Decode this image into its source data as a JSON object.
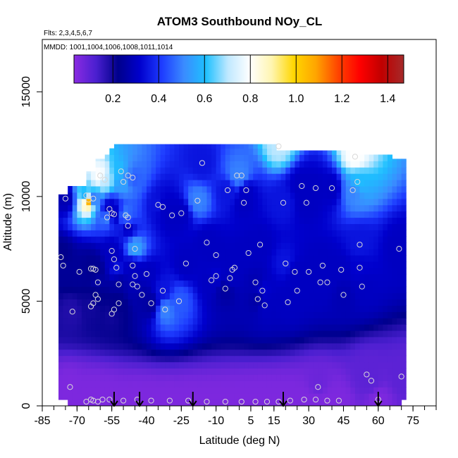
{
  "chart_data": {
    "type": "heatmap",
    "title": "ATOM3 Southbound NOy_CL",
    "flights_note": "Flts: 2,3,4,5,6,7",
    "dates_note": "MMDD: 1001,1004,1006,1008,1011,1014",
    "xlabel": "Latitude (deg N)",
    "ylabel": "Altitude (m)",
    "xlim": [
      -85,
      85
    ],
    "ylim": [
      0,
      17500
    ],
    "x_ticks": [
      -85,
      -70,
      -55,
      -40,
      -25,
      -10,
      5,
      15,
      30,
      45,
      60,
      75
    ],
    "x_tick_labels": [
      "-85",
      "-70",
      "-55",
      "-40",
      "-25",
      "-10",
      "5",
      "15",
      "30",
      "45",
      "60",
      "75"
    ],
    "y_ticks": [
      0,
      5000,
      10000,
      15000
    ],
    "y_tick_labels": [
      "0",
      "5000",
      "10000",
      "15000"
    ],
    "colorbar": {
      "range": [
        0.03,
        1.47
      ],
      "ticks": [
        0.2,
        0.4,
        0.6,
        0.8,
        1.0,
        1.2,
        1.4
      ],
      "tick_labels": [
        "0.2",
        "0.4",
        "0.6",
        "0.8",
        "1.0",
        "1.2",
        "1.4"
      ],
      "colors": [
        "#8a2be2",
        "#4b1fd0",
        "#00008b",
        "#0000cd",
        "#1e3cff",
        "#3a8bff",
        "#1ec0ff",
        "#bfe8ff",
        "#ffffff",
        "#fff5b0",
        "#ffd700",
        "#ffa500",
        "#ff4500",
        "#ff0000",
        "#c00000",
        "#a52a2a"
      ]
    },
    "profile_arrows_lat": [
      -54,
      -43,
      -20,
      19,
      60
    ],
    "samples": [
      [
        -77,
        7100,
        0.22
      ],
      [
        -76,
        6700,
        0.24
      ],
      [
        -75,
        9900,
        0.28
      ],
      [
        -72,
        4500,
        0.18
      ],
      [
        -73,
        900,
        0.05
      ],
      [
        -69,
        6400,
        0.24
      ],
      [
        -66,
        10050,
        0.55
      ],
      [
        -65,
        9850,
        1.1
      ],
      [
        -63,
        9900,
        0.45
      ],
      [
        -64,
        6550,
        0.23
      ],
      [
        -63,
        6550,
        0.23
      ],
      [
        -62,
        6500,
        0.23
      ],
      [
        -61,
        5900,
        0.26
      ],
      [
        -62,
        5300,
        0.22
      ],
      [
        -61,
        5100,
        0.22
      ],
      [
        -63,
        4900,
        0.2
      ],
      [
        -64,
        4750,
        0.2
      ],
      [
        -66,
        200,
        0.05
      ],
      [
        -64,
        300,
        0.05
      ],
      [
        -63,
        250,
        0.05
      ],
      [
        -61,
        200,
        0.05
      ],
      [
        -60,
        11000,
        0.8
      ],
      [
        -58,
        10800,
        0.7
      ],
      [
        -57,
        9000,
        0.5
      ],
      [
        -56,
        9400,
        0.3
      ],
      [
        -55,
        9200,
        0.3
      ],
      [
        -54,
        9150,
        0.3
      ],
      [
        -55,
        7400,
        0.3
      ],
      [
        -54,
        7000,
        0.3
      ],
      [
        -53,
        6600,
        0.35
      ],
      [
        -52,
        5800,
        0.25
      ],
      [
        -54,
        4600,
        0.22
      ],
      [
        -55,
        4400,
        0.2
      ],
      [
        -52,
        4900,
        0.22
      ],
      [
        -51,
        11200,
        0.6
      ],
      [
        -50,
        10700,
        0.55
      ],
      [
        -49,
        9100,
        0.5
      ],
      [
        -48,
        9000,
        0.45
      ],
      [
        -48,
        8600,
        0.3
      ],
      [
        -45,
        7500,
        0.55
      ],
      [
        -46,
        6700,
        0.3
      ],
      [
        -45,
        6200,
        0.3
      ],
      [
        -46,
        5800,
        0.28
      ],
      [
        -44,
        5700,
        0.28
      ],
      [
        -42,
        5300,
        0.26
      ],
      [
        -48,
        11000,
        0.5
      ],
      [
        -46,
        10900,
        0.45
      ],
      [
        -40,
        6300,
        0.3
      ],
      [
        -38,
        4900,
        0.25
      ],
      [
        -35,
        9600,
        0.35
      ],
      [
        -33,
        9500,
        0.3
      ],
      [
        -33,
        5500,
        0.35
      ],
      [
        -32,
        4600,
        0.5
      ],
      [
        -29,
        9100,
        0.3
      ],
      [
        -26,
        5000,
        0.45
      ],
      [
        -25,
        9200,
        0.3
      ],
      [
        -23,
        6800,
        0.3
      ],
      [
        -18,
        9800,
        0.5
      ],
      [
        -16,
        11600,
        0.35
      ],
      [
        -14,
        7800,
        0.3
      ],
      [
        -12,
        6000,
        0.3
      ],
      [
        -10,
        6200,
        0.32
      ],
      [
        -10,
        7200,
        0.3
      ],
      [
        -6,
        5600,
        0.25
      ],
      [
        -5,
        10300,
        0.35
      ],
      [
        -4,
        6100,
        0.3
      ],
      [
        -3,
        6500,
        0.3
      ],
      [
        -2,
        6600,
        0.3
      ],
      [
        -1,
        11000,
        0.5
      ],
      [
        1,
        11000,
        0.5
      ],
      [
        2,
        9700,
        0.3
      ],
      [
        3,
        10300,
        0.3
      ],
      [
        4,
        7300,
        0.3
      ],
      [
        7,
        5900,
        0.28
      ],
      [
        8,
        5100,
        0.26
      ],
      [
        9,
        7700,
        0.3
      ],
      [
        10,
        5500,
        0.32
      ],
      [
        11,
        4800,
        0.3
      ],
      [
        17,
        12400,
        0.7
      ],
      [
        19,
        9700,
        0.35
      ],
      [
        20,
        6800,
        0.35
      ],
      [
        21,
        4950,
        0.3
      ],
      [
        24,
        6400,
        0.3
      ],
      [
        25,
        5500,
        0.3
      ],
      [
        27,
        10500,
        0.3
      ],
      [
        29,
        9700,
        0.3
      ],
      [
        30,
        6400,
        0.3
      ],
      [
        33,
        10400,
        0.3
      ],
      [
        35,
        5900,
        0.3
      ],
      [
        36,
        6700,
        0.3
      ],
      [
        38,
        5900,
        0.3
      ],
      [
        40,
        10400,
        0.3
      ],
      [
        44,
        6500,
        0.3
      ],
      [
        45,
        5300,
        0.28
      ],
      [
        49,
        10300,
        0.5
      ],
      [
        50,
        11900,
        0.8
      ],
      [
        51,
        10700,
        0.6
      ],
      [
        52,
        7700,
        0.35
      ],
      [
        52,
        6600,
        0.32
      ],
      [
        53,
        5700,
        0.3
      ],
      [
        55,
        1500,
        0.1
      ],
      [
        57,
        1200,
        0.1
      ],
      [
        60,
        300,
        0.05
      ],
      [
        70,
        1400,
        0.1
      ],
      [
        69,
        7500,
        0.3
      ],
      [
        -59,
        300,
        0.05
      ],
      [
        -56,
        300,
        0.05
      ],
      [
        -50,
        250,
        0.05
      ],
      [
        -44,
        300,
        0.05
      ],
      [
        -38,
        250,
        0.05
      ],
      [
        -30,
        250,
        0.05
      ],
      [
        -22,
        250,
        0.05
      ],
      [
        -14,
        200,
        0.05
      ],
      [
        -6,
        200,
        0.05
      ],
      [
        1,
        200,
        0.05
      ],
      [
        7,
        200,
        0.05
      ],
      [
        12,
        200,
        0.05
      ],
      [
        17,
        200,
        0.05
      ],
      [
        22,
        250,
        0.05
      ],
      [
        28,
        300,
        0.05
      ],
      [
        33,
        300,
        0.05
      ],
      [
        34,
        900,
        0.08
      ],
      [
        38,
        250,
        0.05
      ],
      [
        43,
        250,
        0.05
      ]
    ]
  }
}
